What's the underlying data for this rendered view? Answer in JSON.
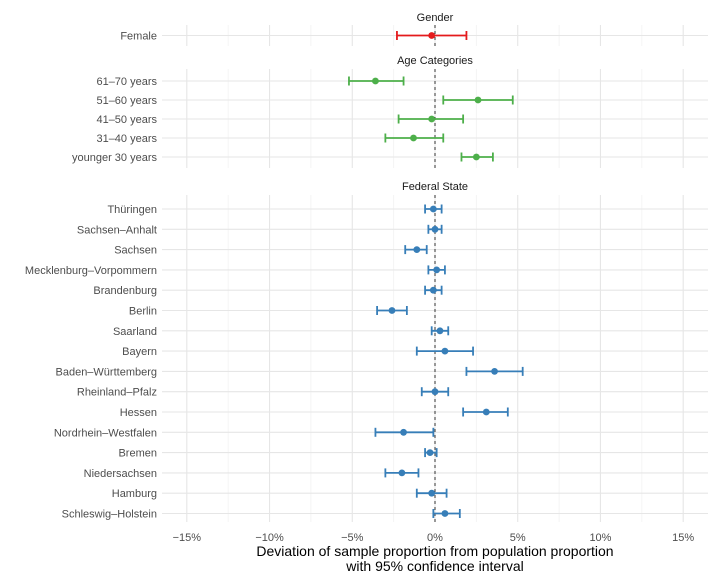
{
  "chart_data": {
    "type": "errorbar",
    "xlabel_line1": "Deviation of sample proportion from population proportion",
    "xlabel_line2": "with 95% confidence interval",
    "xlim": [
      -16.5,
      16.5
    ],
    "x_ticks": [
      -15,
      -10,
      -5,
      0,
      5,
      10,
      15
    ],
    "x_tick_labels": [
      "−15%",
      "−10%",
      "−5%",
      "0%",
      "5%",
      "10%",
      "15%"
    ],
    "reference_line": 0,
    "grid": true,
    "panels": [
      {
        "title": "Gender",
        "color": "#e41a1c",
        "items": [
          {
            "label": "Female",
            "value": -0.2,
            "lower": -2.3,
            "upper": 1.9
          }
        ]
      },
      {
        "title": "Age Categories",
        "color": "#4daf4a",
        "items": [
          {
            "label": "61–70 years",
            "value": -3.6,
            "lower": -5.2,
            "upper": -1.9
          },
          {
            "label": "51–60 years",
            "value": 2.6,
            "lower": 0.5,
            "upper": 4.7
          },
          {
            "label": "41–50 years",
            "value": -0.2,
            "lower": -2.2,
            "upper": 1.7
          },
          {
            "label": "31–40 years",
            "value": -1.3,
            "lower": -3.0,
            "upper": 0.5
          },
          {
            "label": "younger 30 years",
            "value": 2.5,
            "lower": 1.6,
            "upper": 3.5
          }
        ]
      },
      {
        "title": "Federal State",
        "color": "#377eb8",
        "items": [
          {
            "label": "Thüringen",
            "value": -0.1,
            "lower": -0.6,
            "upper": 0.4
          },
          {
            "label": "Sachsen–Anhalt",
            "value": 0.0,
            "lower": -0.4,
            "upper": 0.4
          },
          {
            "label": "Sachsen",
            "value": -1.1,
            "lower": -1.8,
            "upper": -0.5
          },
          {
            "label": "Mecklenburg–Vorpommern",
            "value": 0.1,
            "lower": -0.4,
            "upper": 0.6
          },
          {
            "label": "Brandenburg",
            "value": -0.1,
            "lower": -0.6,
            "upper": 0.4
          },
          {
            "label": "Berlin",
            "value": -2.6,
            "lower": -3.5,
            "upper": -1.7
          },
          {
            "label": "Saarland",
            "value": 0.3,
            "lower": -0.2,
            "upper": 0.8
          },
          {
            "label": "Bayern",
            "value": 0.6,
            "lower": -1.1,
            "upper": 2.3
          },
          {
            "label": "Baden–Württemberg",
            "value": 3.6,
            "lower": 1.9,
            "upper": 5.3
          },
          {
            "label": "Rheinland–Pfalz",
            "value": 0.0,
            "lower": -0.8,
            "upper": 0.8
          },
          {
            "label": "Hessen",
            "value": 3.1,
            "lower": 1.7,
            "upper": 4.4
          },
          {
            "label": "Nordrhein–Westfalen",
            "value": -1.9,
            "lower": -3.6,
            "upper": -0.1
          },
          {
            "label": "Bremen",
            "value": -0.3,
            "lower": -0.6,
            "upper": 0.1
          },
          {
            "label": "Niedersachsen",
            "value": -2.0,
            "lower": -3.0,
            "upper": -1.0
          },
          {
            "label": "Hamburg",
            "value": -0.2,
            "lower": -1.1,
            "upper": 0.7
          },
          {
            "label": "Schleswig–Holstein",
            "value": 0.6,
            "lower": -0.1,
            "upper": 1.5
          }
        ]
      }
    ]
  }
}
